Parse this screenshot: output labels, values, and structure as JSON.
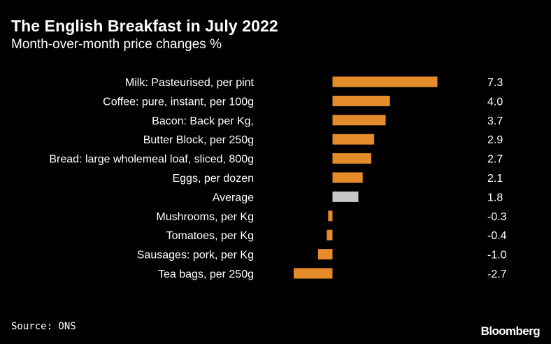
{
  "header": {
    "title": "The English Breakfast in July 2022",
    "subtitle": "Month-over-month price changes %"
  },
  "footer": {
    "source": "Source: ONS",
    "brand": "Bloomberg"
  },
  "colors": {
    "background": "#000000",
    "bar": "#e58c2a",
    "highlight_bar": "#c6c6c6",
    "text": "#ffffff"
  },
  "chart_data": {
    "type": "bar",
    "orientation": "horizontal",
    "title": "The English Breakfast in July 2022",
    "subtitle": "Month-over-month price changes %",
    "categories": [
      "Milk: Pasteurised, per pint",
      "Coffee: pure, instant, per 100g",
      "Bacon: Back per Kg,",
      "Butter Block, per 250g",
      "Bread: large wholemeal loaf, sliced, 800g",
      "Eggs, per dozen",
      "Average",
      "Mushrooms, per Kg",
      "Tomatoes, per Kg",
      "Sausages: pork, per Kg",
      "Tea bags, per 250g"
    ],
    "values": [
      7.3,
      4.0,
      3.7,
      2.9,
      2.7,
      2.1,
      1.8,
      -0.3,
      -0.4,
      -1.0,
      -2.7
    ],
    "value_labels": [
      "7.3",
      "4.0",
      "3.7",
      "2.9",
      "2.7",
      "2.1",
      "1.8",
      "-0.3",
      "-0.4",
      "-1.0",
      "-2.7"
    ],
    "highlight": "Average",
    "xlim": [
      -2.7,
      7.3
    ],
    "xlabel": "",
    "ylabel": "",
    "grid": false,
    "legend": "none"
  }
}
